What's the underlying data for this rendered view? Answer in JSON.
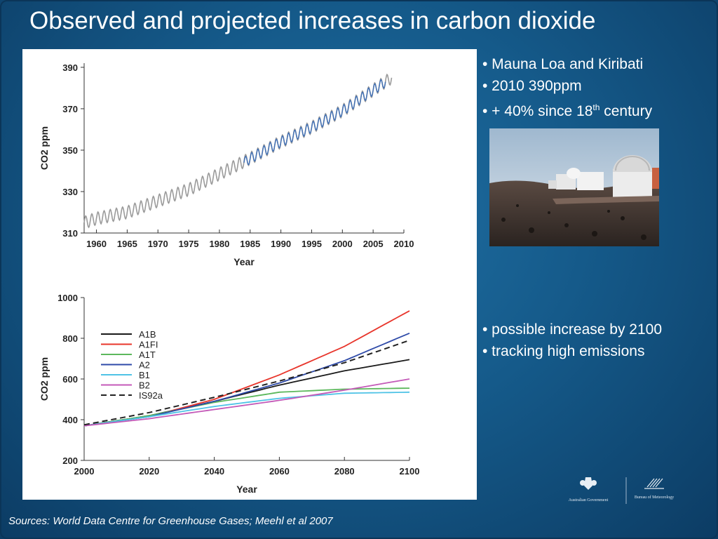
{
  "slide": {
    "title": "Observed and projected increases in carbon dioxide",
    "bullets_top": {
      "b1": "• Mauna Loa and Kiribati",
      "b2": "• 2010 390ppm",
      "b3_pre": "•  + 40% since 18",
      "b3_sup": "th",
      "b3_post": " century"
    },
    "bullets_bottom": {
      "b1": "• possible increase by 2100",
      "b2": "• tracking high emissions"
    },
    "sources_label": "Sources:",
    "sources_text": " World Data Centre for Greenhouse Gases; Meehl et al 2007",
    "logo_left_text": "Australian Government",
    "logo_right_text": "Bureau of Meteorology"
  },
  "colors": {
    "observed_gray": "#9a9a9a",
    "observed_blue": "#3f6fb5",
    "A1B": "#1a1a1a",
    "A1FI": "#e8352b",
    "A1T": "#5cb85c",
    "A2": "#2e4aa8",
    "B1": "#4fc3e6",
    "B2": "#c45ab8",
    "IS92a": "#222222"
  },
  "chart_data": [
    {
      "type": "line",
      "xlabel": "Year",
      "ylabel": "CO2 ppm",
      "xlim": [
        1958,
        2010
      ],
      "ylim": [
        310,
        392
      ],
      "xticks": [
        1960,
        1965,
        1970,
        1975,
        1980,
        1985,
        1990,
        1995,
        2000,
        2005,
        2010
      ],
      "yticks": [
        310,
        330,
        350,
        370,
        390
      ],
      "series": [
        {
          "name": "",
          "color_key": "observed_gray",
          "trend": [
            [
              1958,
              315
            ],
            [
              1960,
              317
            ],
            [
              1965,
              320
            ],
            [
              1970,
              325.5
            ],
            [
              1975,
              331
            ],
            [
              1980,
              338.5
            ],
            [
              1985,
              346
            ],
            [
              1990,
              354
            ],
            [
              1995,
              361
            ],
            [
              2000,
              369
            ],
            [
              2005,
              379
            ],
            [
              2008,
              385
            ]
          ],
          "seasonal_amplitude": 3
        },
        {
          "name": "",
          "color_key": "observed_blue",
          "trend": [
            [
              1984,
              344
            ],
            [
              1985,
              346
            ],
            [
              1990,
              354
            ],
            [
              1995,
              361
            ],
            [
              2000,
              369
            ],
            [
              2005,
              379
            ],
            [
              2007,
              383
            ]
          ],
          "seasonal_amplitude": 2.5
        }
      ]
    },
    {
      "type": "line",
      "xlabel": "Year",
      "ylabel": "CO2 ppm",
      "xlim": [
        2000,
        2100
      ],
      "ylim": [
        200,
        1000
      ],
      "xticks": [
        2000,
        2020,
        2040,
        2060,
        2080,
        2100
      ],
      "yticks": [
        200,
        400,
        600,
        800,
        1000
      ],
      "x": [
        2000,
        2020,
        2040,
        2060,
        2080,
        2100
      ],
      "series": [
        {
          "name": "A1B",
          "color_key": "A1B",
          "dash": false,
          "values": [
            370,
            420,
            490,
            570,
            640,
            695
          ]
        },
        {
          "name": "A1FI",
          "color_key": "A1FI",
          "dash": false,
          "values": [
            370,
            415,
            500,
            620,
            760,
            935
          ]
        },
        {
          "name": "A1T",
          "color_key": "A1T",
          "dash": false,
          "values": [
            370,
            420,
            485,
            535,
            550,
            555
          ]
        },
        {
          "name": "A2",
          "color_key": "A2",
          "dash": false,
          "values": [
            370,
            415,
            490,
            580,
            690,
            825
          ]
        },
        {
          "name": "B1",
          "color_key": "B1",
          "dash": false,
          "values": [
            370,
            415,
            465,
            505,
            530,
            535
          ]
        },
        {
          "name": "B2",
          "color_key": "B2",
          "dash": false,
          "values": [
            370,
            405,
            450,
            495,
            545,
            600
          ]
        },
        {
          "name": "IS92a",
          "color_key": "IS92a",
          "dash": true,
          "values": [
            375,
            435,
            510,
            590,
            680,
            790
          ]
        }
      ]
    }
  ]
}
